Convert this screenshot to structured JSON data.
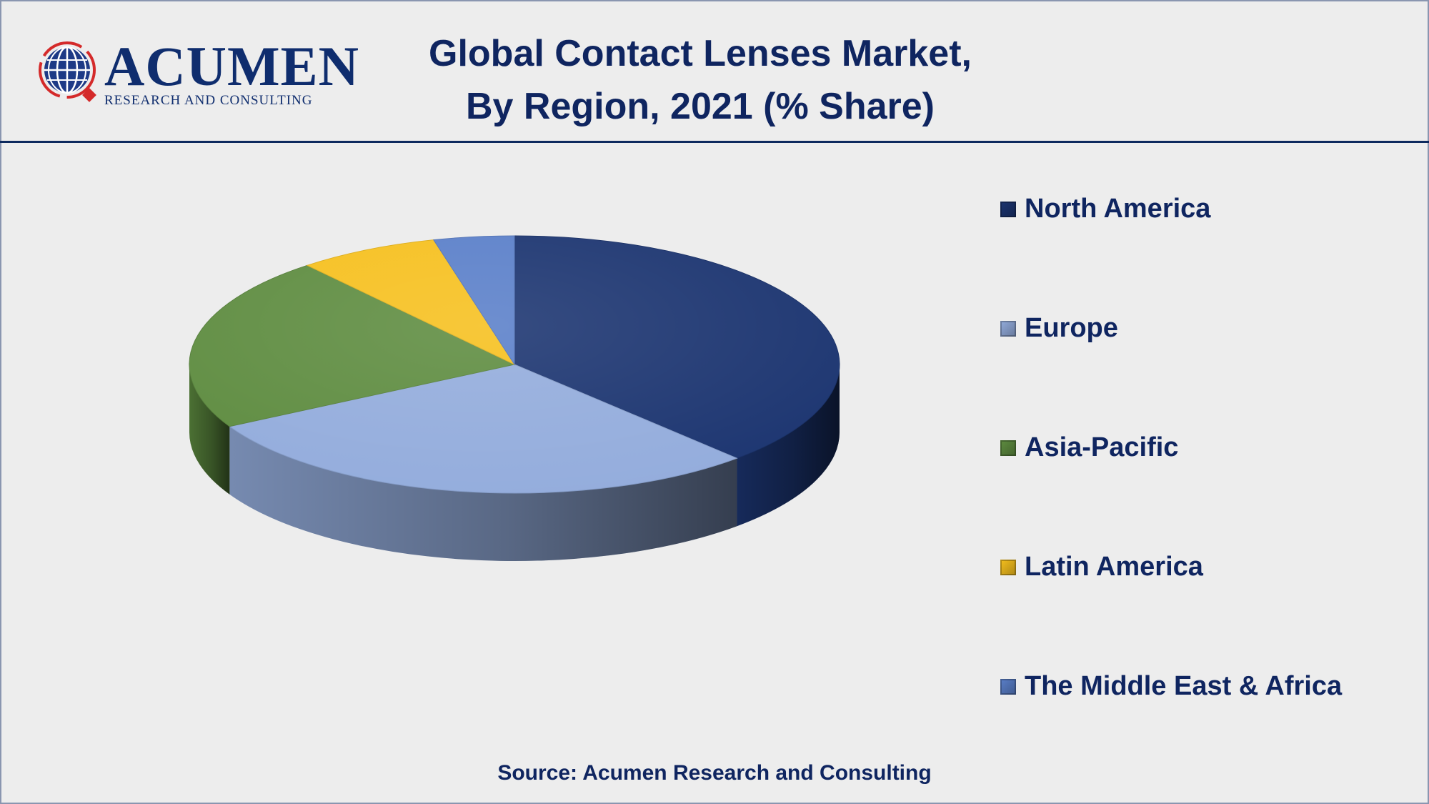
{
  "header": {
    "logo_wordmark": "ACUMEN",
    "logo_tagline": "RESEARCH AND CONSULTING",
    "title_line1": "Global Contact Lenses Market,",
    "title_line2": "By Region, 2021 (% Share)"
  },
  "chart_data": {
    "type": "pie",
    "title": "Global Contact Lenses Market, By Region, 2021 (% Share)",
    "style": "3d",
    "legend_position": "right",
    "slices": [
      {
        "label": "North America",
        "value": 38,
        "color": "#1b3470"
      },
      {
        "label": "Europe",
        "value": 29,
        "color": "#93acdc"
      },
      {
        "label": "Asia-Pacific",
        "value": 22,
        "color": "#5e8c40"
      },
      {
        "label": "Latin America",
        "value": 7,
        "color": "#f6c01e"
      },
      {
        "label": "The Middle East & Africa",
        "value": 4,
        "color": "#5a7fc9"
      }
    ]
  },
  "footer": {
    "source": "Source: Acumen Research and Consulting"
  }
}
